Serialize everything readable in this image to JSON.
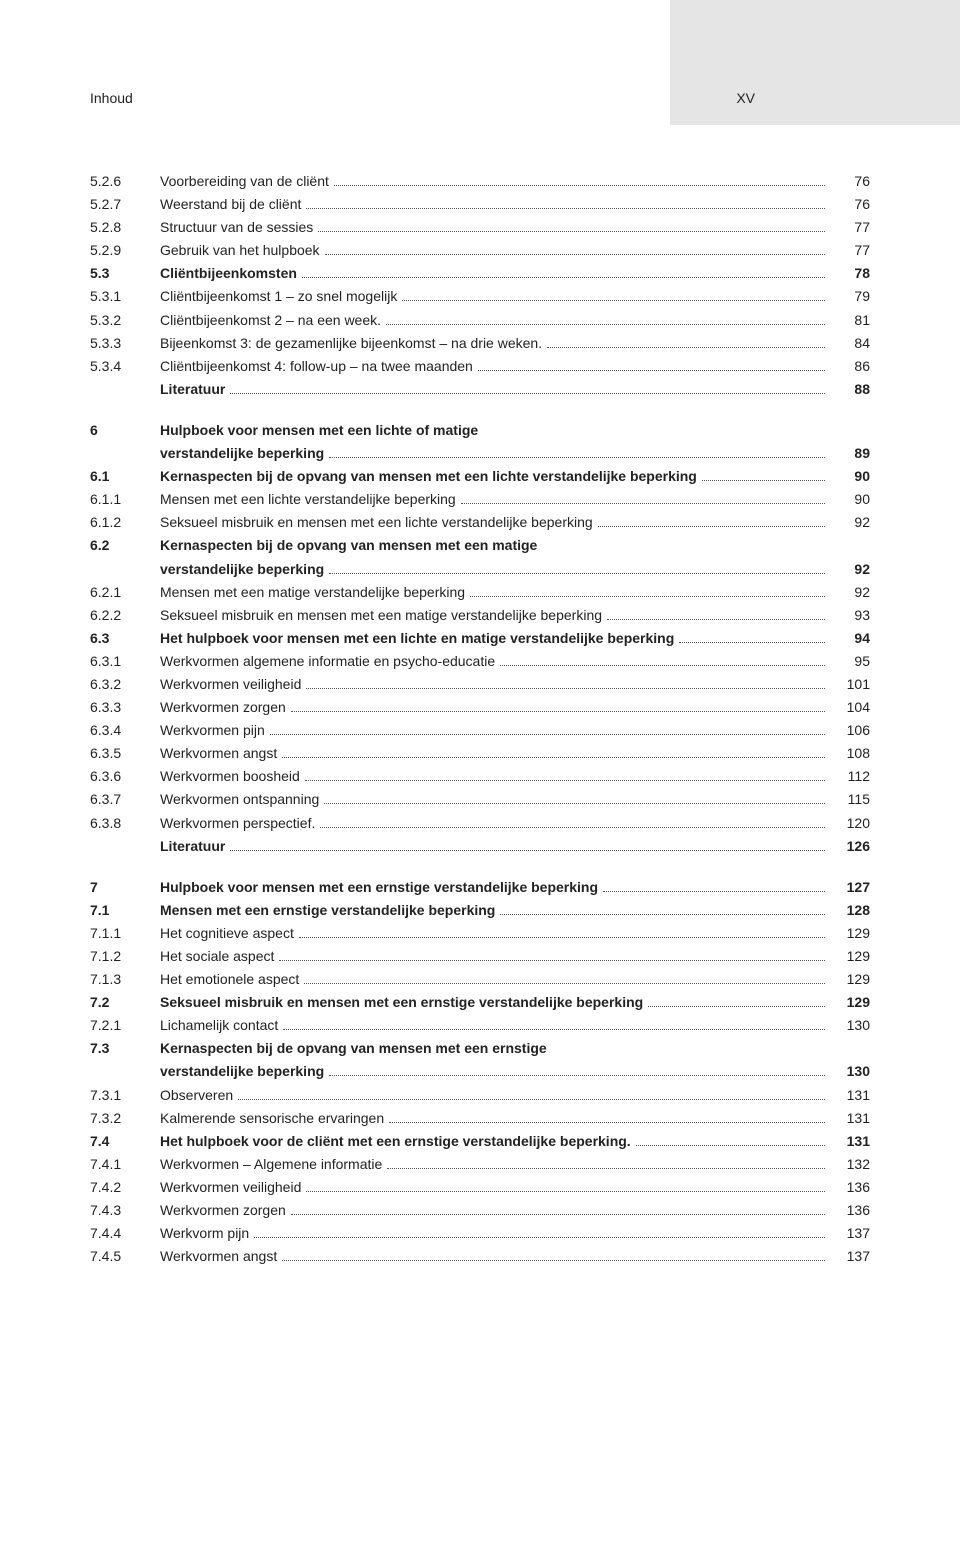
{
  "header": {
    "running_head": "Inhoud",
    "page_marker": "XV"
  },
  "toc": [
    {
      "num": "5.2.6",
      "title": "Voorbereiding van de cliënt",
      "page": "76"
    },
    {
      "num": "5.2.7",
      "title": "Weerstand bij de cliënt",
      "page": "76"
    },
    {
      "num": "5.2.8",
      "title": "Structuur van de sessies",
      "page": "77"
    },
    {
      "num": "5.2.9",
      "title": "Gebruik van het hulpboek",
      "page": "77"
    },
    {
      "num": "5.3",
      "title": "Cliëntbijeenkomsten",
      "page": "78",
      "bold": true
    },
    {
      "num": "5.3.1",
      "title": "Cliëntbijeenkomst 1 – zo snel mogelijk",
      "page": "79"
    },
    {
      "num": "5.3.2",
      "title": "Cliëntbijeenkomst 2 – na een week.",
      "page": "81"
    },
    {
      "num": "5.3.3",
      "title": "Bijeenkomst 3: de gezamenlijke bijeenkomst – na drie weken.",
      "page": "84"
    },
    {
      "num": "5.3.4",
      "title": "Cliëntbijeenkomst 4: follow-up – na twee maanden",
      "page": "86"
    },
    {
      "num": "",
      "title": "Literatuur",
      "page": "88",
      "bold": true
    },
    {
      "gap": true
    },
    {
      "num": "6",
      "title": "Hulpboek voor mensen met een lichte of matige verstandelijke beperking",
      "page": "89",
      "bold": true,
      "multiline": true
    },
    {
      "num": "6.1",
      "title": "Kernaspecten bij de opvang van mensen met een lichte verstandelijke beperking",
      "page": "90",
      "bold": true
    },
    {
      "num": "6.1.1",
      "title": "Mensen met een lichte verstandelijke beperking",
      "page": "90"
    },
    {
      "num": "6.1.2",
      "title": "Seksueel misbruik en mensen met een lichte verstandelijke beperking",
      "page": "92"
    },
    {
      "num": "6.2",
      "title": "Kernaspecten bij de opvang van mensen met een matige verstandelijke beperking",
      "page": "92",
      "bold": true,
      "multiline": true
    },
    {
      "num": "6.2.1",
      "title": "Mensen met een matige verstandelijke beperking",
      "page": "92"
    },
    {
      "num": "6.2.2",
      "title": "Seksueel misbruik en mensen met een matige verstandelijke beperking",
      "page": "93"
    },
    {
      "num": "6.3",
      "title": "Het hulpboek voor mensen met een lichte en matige verstandelijke beperking",
      "page": "94",
      "bold": true
    },
    {
      "num": "6.3.1",
      "title": "Werkvormen algemene informatie en psycho-educatie",
      "page": "95"
    },
    {
      "num": "6.3.2",
      "title": "Werkvormen veiligheid",
      "page": "101"
    },
    {
      "num": "6.3.3",
      "title": "Werkvormen zorgen",
      "page": "104"
    },
    {
      "num": "6.3.4",
      "title": "Werkvormen pijn",
      "page": "106"
    },
    {
      "num": "6.3.5",
      "title": "Werkvormen angst",
      "page": "108"
    },
    {
      "num": "6.3.6",
      "title": "Werkvormen boosheid",
      "page": "112"
    },
    {
      "num": "6.3.7",
      "title": "Werkvormen ontspanning",
      "page": "115"
    },
    {
      "num": "6.3.8",
      "title": "Werkvormen perspectief.",
      "page": "120"
    },
    {
      "num": "",
      "title": "Literatuur",
      "page": "126",
      "bold": true
    },
    {
      "gap": true
    },
    {
      "num": "7",
      "title": "Hulpboek voor mensen met een ernstige verstandelijke beperking",
      "page": "127",
      "bold": true
    },
    {
      "num": "7.1",
      "title": "Mensen met een ernstige verstandelijke beperking",
      "page": "128",
      "bold": true
    },
    {
      "num": "7.1.1",
      "title": "Het cognitieve aspect",
      "page": "129"
    },
    {
      "num": "7.1.2",
      "title": "Het sociale aspect",
      "page": "129"
    },
    {
      "num": "7.1.3",
      "title": "Het emotionele aspect",
      "page": "129"
    },
    {
      "num": "7.2",
      "title": "Seksueel misbruik en mensen met een ernstige verstandelijke beperking",
      "page": "129",
      "bold": true
    },
    {
      "num": "7.2.1",
      "title": "Lichamelijk contact",
      "page": "130"
    },
    {
      "num": "7.3",
      "title": "Kernaspecten bij de opvang van mensen met een ernstige verstandelijke beperking",
      "page": "130",
      "bold": true,
      "multiline": true
    },
    {
      "num": "7.3.1",
      "title": "Observeren",
      "page": "131"
    },
    {
      "num": "7.3.2",
      "title": "Kalmerende sensorische ervaringen",
      "page": "131"
    },
    {
      "num": "7.4",
      "title": "Het hulpboek voor de cliënt met een ernstige verstandelijke beperking.",
      "page": "131",
      "bold": true
    },
    {
      "num": "7.4.1",
      "title": "Werkvormen – Algemene informatie",
      "page": "132"
    },
    {
      "num": "7.4.2",
      "title": "Werkvormen veiligheid",
      "page": "136"
    },
    {
      "num": "7.4.3",
      "title": "Werkvormen zorgen",
      "page": "136"
    },
    {
      "num": "7.4.4",
      "title": "Werkvorm pijn",
      "page": "137"
    },
    {
      "num": "7.4.5",
      "title": "Werkvormen angst",
      "page": "137"
    }
  ]
}
